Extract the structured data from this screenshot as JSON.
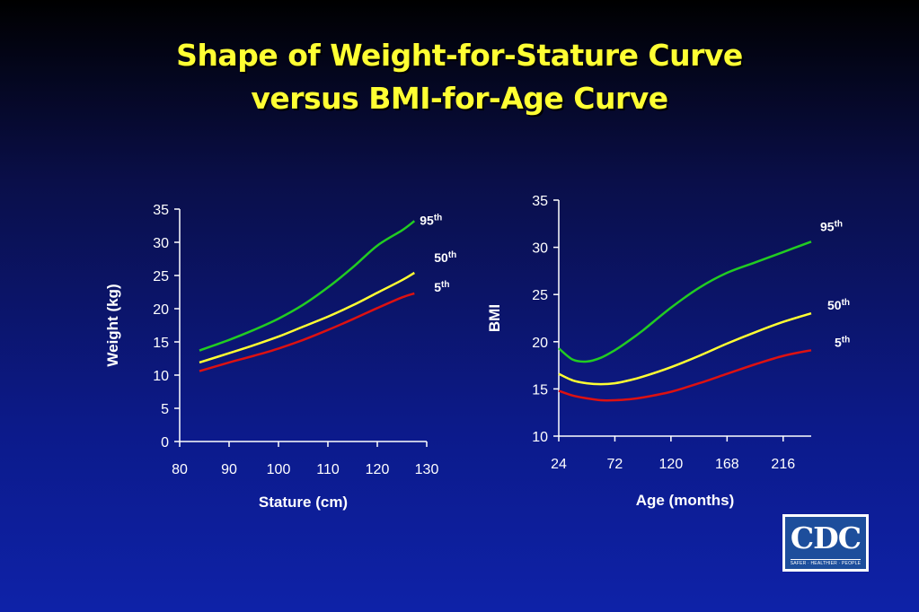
{
  "title": {
    "line1": "Shape of Weight-for-Stature Curve",
    "line2": "versus BMI-for-Age Curve"
  },
  "logo": {
    "text": "CDC",
    "tagline": "SAFER · HEALTHIER · PEOPLE"
  },
  "chart_data": [
    {
      "type": "line",
      "title": "",
      "xlabel": "Stature (cm)",
      "ylabel": "Weight (kg)",
      "xlim": [
        80,
        130
      ],
      "ylim": [
        0,
        35
      ],
      "xticks": [
        80,
        90,
        100,
        110,
        120,
        130
      ],
      "yticks": [
        0,
        5,
        10,
        15,
        20,
        25,
        30,
        35
      ],
      "grid": false,
      "series": [
        {
          "name": "95",
          "suffix": "th",
          "color": "#22cc22",
          "x": [
            84,
            90,
            95,
            100,
            105,
            110,
            115,
            120,
            125,
            127.5
          ],
          "y": [
            13.7,
            15.3,
            16.8,
            18.5,
            20.6,
            23.2,
            26.2,
            29.5,
            31.8,
            33.2
          ]
        },
        {
          "name": "50",
          "suffix": "th",
          "color": "#ffff33",
          "x": [
            84,
            90,
            95,
            100,
            105,
            110,
            115,
            120,
            125,
            127.5
          ],
          "y": [
            11.9,
            13.3,
            14.5,
            15.8,
            17.3,
            18.8,
            20.5,
            22.4,
            24.3,
            25.4
          ]
        },
        {
          "name": "5",
          "suffix": "th",
          "color": "#dd1111",
          "x": [
            84,
            90,
            95,
            100,
            105,
            110,
            115,
            120,
            125,
            127.5
          ],
          "y": [
            10.6,
            11.9,
            12.9,
            14.0,
            15.3,
            16.8,
            18.4,
            20.1,
            21.7,
            22.3
          ]
        }
      ]
    },
    {
      "type": "line",
      "title": "",
      "xlabel": "Age (months)",
      "ylabel": "BMI",
      "xlim": [
        24,
        240
      ],
      "ylim": [
        10,
        35
      ],
      "xticks": [
        24,
        72,
        120,
        168,
        216
      ],
      "yticks": [
        10,
        15,
        20,
        25,
        30,
        35
      ],
      "grid": false,
      "series": [
        {
          "name": "95",
          "suffix": "th",
          "color": "#22cc22",
          "x": [
            24,
            36,
            48,
            60,
            72,
            84,
            96,
            120,
            144,
            168,
            192,
            216,
            240
          ],
          "y": [
            19.3,
            18.1,
            17.9,
            18.3,
            19.1,
            20.1,
            21.2,
            23.6,
            25.7,
            27.3,
            28.4,
            29.5,
            30.6
          ]
        },
        {
          "name": "50",
          "suffix": "th",
          "color": "#ffff33",
          "x": [
            24,
            36,
            48,
            60,
            72,
            84,
            96,
            120,
            144,
            168,
            192,
            216,
            240
          ],
          "y": [
            16.6,
            15.9,
            15.6,
            15.5,
            15.6,
            15.9,
            16.3,
            17.3,
            18.5,
            19.8,
            21.0,
            22.1,
            23.0
          ]
        },
        {
          "name": "5",
          "suffix": "th",
          "color": "#dd1111",
          "x": [
            24,
            36,
            48,
            60,
            72,
            84,
            96,
            120,
            144,
            168,
            192,
            216,
            240
          ],
          "y": [
            14.8,
            14.3,
            14.0,
            13.8,
            13.8,
            13.9,
            14.1,
            14.7,
            15.6,
            16.6,
            17.6,
            18.5,
            19.1
          ]
        }
      ]
    }
  ]
}
